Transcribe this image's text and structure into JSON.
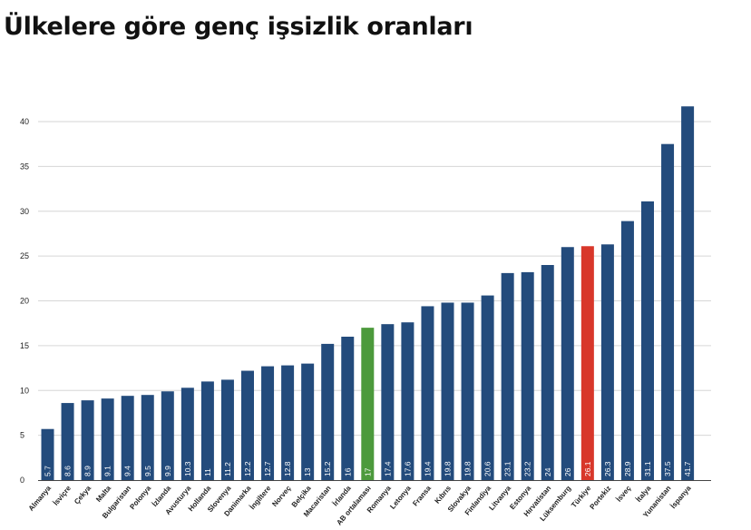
{
  "chart_data": {
    "type": "bar",
    "title": "Ülkelere göre genç işsizlik oranları",
    "xlabel": "",
    "ylabel": "",
    "ylim": [
      0,
      40
    ],
    "yticks": [
      "0",
      "5",
      "10",
      "15",
      "20",
      "25",
      "30",
      "35",
      "40"
    ],
    "grid": true,
    "categories": [
      "Almanya",
      "İsviçre",
      "Çekya",
      "Malta",
      "Bulgaristan",
      "Polonya",
      "İzlanda",
      "Avusturya",
      "Hollanda",
      "Slovenya",
      "Danimarka",
      "İngiltere",
      "Norveç",
      "Belçika",
      "Macaristan",
      "İrlanda",
      "AB ortalaması",
      "Romanya",
      "Letonya",
      "Fransa",
      "Kıbrıs",
      "Slovakya",
      "Finlandiya",
      "Litvanya",
      "Estonya",
      "Hırvatistan",
      "Lüksemburg",
      "Türkiye",
      "Portekiz",
      "İsveç",
      "İtalya",
      "Yunanistan",
      "İspanya"
    ],
    "values": [
      5.7,
      8.6,
      8.9,
      9.1,
      9.4,
      9.5,
      9.9,
      10.3,
      11,
      11.2,
      12.2,
      12.7,
      12.8,
      13,
      15.2,
      16,
      17,
      17.4,
      17.6,
      19.4,
      19.8,
      19.8,
      20.6,
      23.1,
      23.2,
      24,
      26,
      26.1,
      26.3,
      28.9,
      31.1,
      37.5,
      41.7
    ],
    "value_labels": [
      "5.7",
      "8.6",
      "8.9",
      "9.1",
      "9.4",
      "9.5",
      "9.9",
      "10.3",
      "11",
      "11.2",
      "12.2",
      "12.7",
      "12.8",
      "13",
      "15.2",
      "16",
      "17",
      "17.4",
      "17.6",
      "19.4",
      "19.8",
      "19.8",
      "20.6",
      "23.1",
      "23.2",
      "24",
      "26",
      "26.1",
      "26.3",
      "28.9",
      "31.1",
      "37.5",
      "41.7"
    ],
    "colors": {
      "default": "#234b7c",
      "AB ortalaması": "#4c9a3c",
      "Türkiye": "#d8372a"
    },
    "grid_color": "#d6d6d6"
  }
}
